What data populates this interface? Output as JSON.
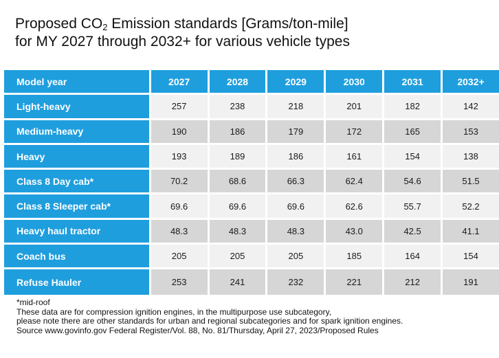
{
  "title": {
    "line1_prefix": "Proposed CO",
    "line1_sub": "2",
    "line1_suffix": " Emission standards [Grams/ton-mile]",
    "line2": "for MY 2027 through 2032+ for various vehicle types"
  },
  "chart_data": {
    "type": "table",
    "columns": [
      "Model year",
      "2027",
      "2028",
      "2029",
      "2030",
      "2031",
      "2032+"
    ],
    "rows": [
      {
        "label": "Light-heavy",
        "values": [
          "257",
          "238",
          "218",
          "201",
          "182",
          "142"
        ]
      },
      {
        "label": "Medium-heavy",
        "values": [
          "190",
          "186",
          "179",
          "172",
          "165",
          "153"
        ]
      },
      {
        "label": "Heavy",
        "values": [
          "193",
          "189",
          "186",
          "161",
          "154",
          "138"
        ]
      },
      {
        "label": "Class 8 Day cab*",
        "values": [
          "70.2",
          "68.6",
          "66.3",
          "62.4",
          "54.6",
          "51.5"
        ]
      },
      {
        "label": "Class 8 Sleeper cab*",
        "values": [
          "69.6",
          "69.6",
          "69.6",
          "62.6",
          "55.7",
          "52.2"
        ]
      },
      {
        "label": "Heavy haul tractor",
        "values": [
          "48.3",
          "48.3",
          "48.3",
          "43.0",
          "42.5",
          "41.1"
        ]
      },
      {
        "label": "Coach bus",
        "values": [
          "205",
          "205",
          "205",
          "185",
          "164",
          "154"
        ]
      },
      {
        "label": "Refuse Hauler",
        "values": [
          "253",
          "241",
          "232",
          "221",
          "212",
          "191"
        ]
      }
    ]
  },
  "notes": [
    "*mid-roof",
    "These data are for compression ignition engines, in the multipurpose use subcategory,",
    "please note there are other standards for urban and regional subcategories and for spark ignition engines.",
    "Source www.govinfo.gov Federal Register/Vol. 88, No. 81/Thursday, April 27, 2023/Proposed Rules"
  ],
  "colors": {
    "header_blue": "#1f9ede",
    "row_light": "#f1f1f1",
    "row_dark": "#d6d6d6"
  }
}
